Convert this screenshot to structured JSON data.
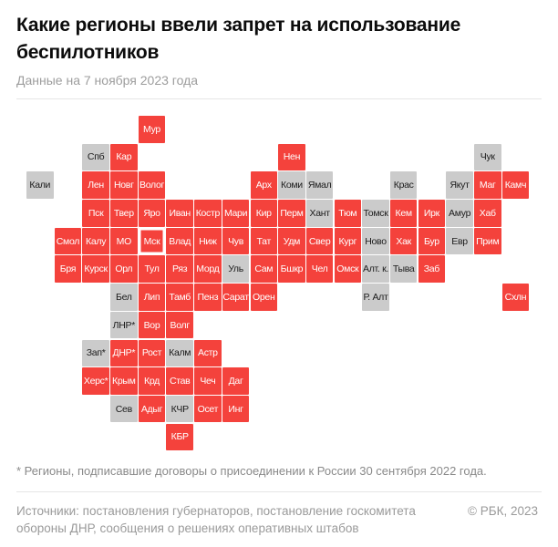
{
  "header": {
    "title": "Какие регионы ввели запрет на использование беспилотников",
    "subtitle": "Данные на 7 ноября 2023 года"
  },
  "chart_data": {
    "type": "heatmap",
    "title": "Какие регионы ввели запрет на использование беспилотников",
    "subtitle": "Данные на 7 ноября 2023 года",
    "grid": {
      "columns": 18,
      "rows": 12
    },
    "colors": {
      "banned": "#f4423c",
      "banned_text": "#ffffff",
      "exempt": "#cbcbcb",
      "exempt_text": "#1b1b1b",
      "highlight_outline": "#ffffff"
    },
    "highlighted_tile": "Мск",
    "tiles": [
      {
        "label": "Мур",
        "row": 0,
        "col": 4,
        "banned": true
      },
      {
        "label": "Спб",
        "row": 1,
        "col": 2,
        "banned": false
      },
      {
        "label": "Кар",
        "row": 1,
        "col": 3,
        "banned": true
      },
      {
        "label": "Нен",
        "row": 1,
        "col": 9,
        "banned": true
      },
      {
        "label": "Чук",
        "row": 1,
        "col": 16,
        "banned": false
      },
      {
        "label": "Кали",
        "row": 2,
        "col": 0,
        "banned": false
      },
      {
        "label": "Лен",
        "row": 2,
        "col": 2,
        "banned": true
      },
      {
        "label": "Новг",
        "row": 2,
        "col": 3,
        "banned": true
      },
      {
        "label": "Волог",
        "row": 2,
        "col": 4,
        "banned": true
      },
      {
        "label": "Арх",
        "row": 2,
        "col": 8,
        "banned": true
      },
      {
        "label": "Коми",
        "row": 2,
        "col": 9,
        "banned": false
      },
      {
        "label": "Ямал",
        "row": 2,
        "col": 10,
        "banned": false
      },
      {
        "label": "Крас",
        "row": 2,
        "col": 13,
        "banned": false
      },
      {
        "label": "Якут",
        "row": 2,
        "col": 15,
        "banned": false
      },
      {
        "label": "Маг",
        "row": 2,
        "col": 16,
        "banned": true
      },
      {
        "label": "Камч",
        "row": 2,
        "col": 17,
        "banned": true
      },
      {
        "label": "Пск",
        "row": 3,
        "col": 2,
        "banned": true
      },
      {
        "label": "Твер",
        "row": 3,
        "col": 3,
        "banned": true
      },
      {
        "label": "Яро",
        "row": 3,
        "col": 4,
        "banned": true
      },
      {
        "label": "Иван",
        "row": 3,
        "col": 5,
        "banned": true
      },
      {
        "label": "Костр",
        "row": 3,
        "col": 6,
        "banned": true
      },
      {
        "label": "Мари",
        "row": 3,
        "col": 7,
        "banned": true
      },
      {
        "label": "Кир",
        "row": 3,
        "col": 8,
        "banned": true
      },
      {
        "label": "Перм",
        "row": 3,
        "col": 9,
        "banned": true
      },
      {
        "label": "Хант",
        "row": 3,
        "col": 10,
        "banned": false
      },
      {
        "label": "Тюм",
        "row": 3,
        "col": 11,
        "banned": true
      },
      {
        "label": "Томск",
        "row": 3,
        "col": 12,
        "banned": false
      },
      {
        "label": "Кем",
        "row": 3,
        "col": 13,
        "banned": true
      },
      {
        "label": "Ирк",
        "row": 3,
        "col": 14,
        "banned": true
      },
      {
        "label": "Амур",
        "row": 3,
        "col": 15,
        "banned": false
      },
      {
        "label": "Хаб",
        "row": 3,
        "col": 16,
        "banned": true
      },
      {
        "label": "Смол",
        "row": 4,
        "col": 1,
        "banned": true
      },
      {
        "label": "Калу",
        "row": 4,
        "col": 2,
        "banned": true
      },
      {
        "label": "МО",
        "row": 4,
        "col": 3,
        "banned": true
      },
      {
        "label": "Мск",
        "row": 4,
        "col": 4,
        "banned": true
      },
      {
        "label": "Влад",
        "row": 4,
        "col": 5,
        "banned": true
      },
      {
        "label": "Ниж",
        "row": 4,
        "col": 6,
        "banned": true
      },
      {
        "label": "Чув",
        "row": 4,
        "col": 7,
        "banned": true
      },
      {
        "label": "Тат",
        "row": 4,
        "col": 8,
        "banned": true
      },
      {
        "label": "Удм",
        "row": 4,
        "col": 9,
        "banned": true
      },
      {
        "label": "Свер",
        "row": 4,
        "col": 10,
        "banned": true
      },
      {
        "label": "Кург",
        "row": 4,
        "col": 11,
        "banned": true
      },
      {
        "label": "Ново",
        "row": 4,
        "col": 12,
        "banned": false
      },
      {
        "label": "Хак",
        "row": 4,
        "col": 13,
        "banned": true
      },
      {
        "label": "Бур",
        "row": 4,
        "col": 14,
        "banned": true
      },
      {
        "label": "Евр",
        "row": 4,
        "col": 15,
        "banned": false
      },
      {
        "label": "Прим",
        "row": 4,
        "col": 16,
        "banned": true
      },
      {
        "label": "Бря",
        "row": 5,
        "col": 1,
        "banned": true
      },
      {
        "label": "Курск",
        "row": 5,
        "col": 2,
        "banned": true
      },
      {
        "label": "Орл",
        "row": 5,
        "col": 3,
        "banned": true
      },
      {
        "label": "Тул",
        "row": 5,
        "col": 4,
        "banned": true
      },
      {
        "label": "Ряз",
        "row": 5,
        "col": 5,
        "banned": true
      },
      {
        "label": "Морд",
        "row": 5,
        "col": 6,
        "banned": true
      },
      {
        "label": "Уль",
        "row": 5,
        "col": 7,
        "banned": false
      },
      {
        "label": "Сам",
        "row": 5,
        "col": 8,
        "banned": true
      },
      {
        "label": "Бшкр",
        "row": 5,
        "col": 9,
        "banned": true
      },
      {
        "label": "Чел",
        "row": 5,
        "col": 10,
        "banned": true
      },
      {
        "label": "Омск",
        "row": 5,
        "col": 11,
        "banned": true
      },
      {
        "label": "Алт. к.",
        "row": 5,
        "col": 12,
        "banned": false
      },
      {
        "label": "Тыва",
        "row": 5,
        "col": 13,
        "banned": false
      },
      {
        "label": "Заб",
        "row": 5,
        "col": 14,
        "banned": true
      },
      {
        "label": "Бел",
        "row": 6,
        "col": 3,
        "banned": false
      },
      {
        "label": "Лип",
        "row": 6,
        "col": 4,
        "banned": true
      },
      {
        "label": "Тамб",
        "row": 6,
        "col": 5,
        "banned": true
      },
      {
        "label": "Пенз",
        "row": 6,
        "col": 6,
        "banned": true
      },
      {
        "label": "Сарат",
        "row": 6,
        "col": 7,
        "banned": true
      },
      {
        "label": "Орен",
        "row": 6,
        "col": 8,
        "banned": true
      },
      {
        "label": "Р. Алт",
        "row": 6,
        "col": 12,
        "banned": false
      },
      {
        "label": "Схлн",
        "row": 6,
        "col": 17,
        "banned": true
      },
      {
        "label": "ЛНР*",
        "row": 7,
        "col": 3,
        "banned": false
      },
      {
        "label": "Вор",
        "row": 7,
        "col": 4,
        "banned": true
      },
      {
        "label": "Волг",
        "row": 7,
        "col": 5,
        "banned": true
      },
      {
        "label": "Зап*",
        "row": 8,
        "col": 2,
        "banned": false
      },
      {
        "label": "ДНР*",
        "row": 8,
        "col": 3,
        "banned": true
      },
      {
        "label": "Рост",
        "row": 8,
        "col": 4,
        "banned": true
      },
      {
        "label": "Калм",
        "row": 8,
        "col": 5,
        "banned": false
      },
      {
        "label": "Астр",
        "row": 8,
        "col": 6,
        "banned": true
      },
      {
        "label": "Херс*",
        "row": 9,
        "col": 2,
        "banned": true
      },
      {
        "label": "Крым",
        "row": 9,
        "col": 3,
        "banned": true
      },
      {
        "label": "Крд",
        "row": 9,
        "col": 4,
        "banned": true
      },
      {
        "label": "Став",
        "row": 9,
        "col": 5,
        "banned": true
      },
      {
        "label": "Чеч",
        "row": 9,
        "col": 6,
        "banned": true
      },
      {
        "label": "Даг",
        "row": 9,
        "col": 7,
        "banned": true
      },
      {
        "label": "Сев",
        "row": 10,
        "col": 3,
        "banned": false
      },
      {
        "label": "Адыг",
        "row": 10,
        "col": 4,
        "banned": true
      },
      {
        "label": "КЧР",
        "row": 10,
        "col": 5,
        "banned": false
      },
      {
        "label": "Осет",
        "row": 10,
        "col": 6,
        "banned": true
      },
      {
        "label": "Инг",
        "row": 10,
        "col": 7,
        "banned": true
      },
      {
        "label": "КБР",
        "row": 11,
        "col": 5,
        "banned": true
      }
    ]
  },
  "footer": {
    "footnote": "* Регионы, подписавшие договоры о присоединении к России 30 сентября 2022 года.",
    "sources": "Источники: постановления губернаторов, постановление госкомитета\nобороны ДНР, сообщения о решениях оперативных штабов",
    "copyright": "© РБК, 2023"
  }
}
